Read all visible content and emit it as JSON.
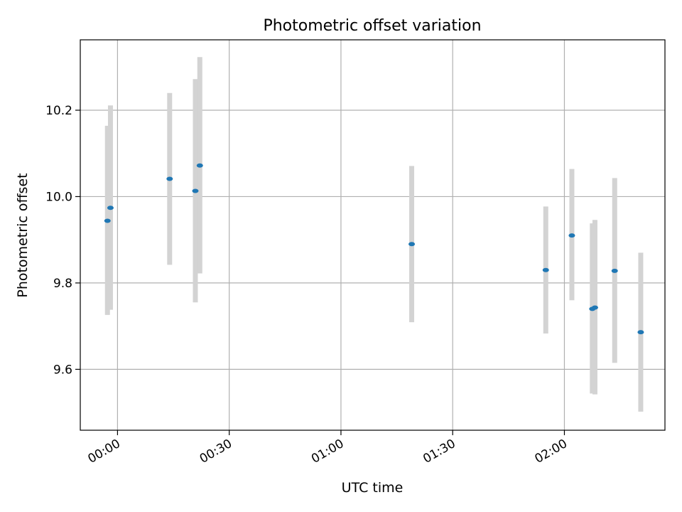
{
  "chart_data": {
    "type": "scatter",
    "title": "Photometric offset variation",
    "xlabel": "UTC time",
    "ylabel": "Photometric offset",
    "x_axis": {
      "unit": "minutes after 00:00 UTC",
      "range": [
        -10,
        147
      ],
      "ticks": [
        {
          "value": 0,
          "label": "00:00"
        },
        {
          "value": 30,
          "label": "00:30"
        },
        {
          "value": 60,
          "label": "01:00"
        },
        {
          "value": 90,
          "label": "01:30"
        },
        {
          "value": 120,
          "label": "02:00"
        }
      ]
    },
    "y_axis": {
      "range": [
        9.459,
        10.363
      ],
      "ticks": [
        {
          "value": 9.6,
          "label": "9.6"
        },
        {
          "value": 9.8,
          "label": "9.8"
        },
        {
          "value": 10.0,
          "label": "10.0"
        },
        {
          "value": 10.2,
          "label": "10.2"
        }
      ]
    },
    "grid": true,
    "legend": "none",
    "colors": {
      "marker": "#1f77b4",
      "errorbar": "#d3d3d3",
      "grid": "#b0b0b0"
    },
    "points": [
      {
        "x": -2.7,
        "y": 9.944,
        "ylo": 9.726,
        "yhi": 10.164
      },
      {
        "x": -1.9,
        "y": 9.974,
        "ylo": 9.738,
        "yhi": 10.211
      },
      {
        "x": 14.0,
        "y": 10.041,
        "ylo": 9.842,
        "yhi": 10.24
      },
      {
        "x": 20.9,
        "y": 10.013,
        "ylo": 9.755,
        "yhi": 10.272
      },
      {
        "x": 22.1,
        "y": 10.072,
        "ylo": 9.822,
        "yhi": 10.323
      },
      {
        "x": 79.0,
        "y": 9.89,
        "ylo": 9.709,
        "yhi": 10.071
      },
      {
        "x": 115.0,
        "y": 9.83,
        "ylo": 9.683,
        "yhi": 9.977
      },
      {
        "x": 122.0,
        "y": 9.91,
        "ylo": 9.76,
        "yhi": 10.064
      },
      {
        "x": 127.5,
        "y": 9.74,
        "ylo": 9.544,
        "yhi": 9.938
      },
      {
        "x": 128.2,
        "y": 9.743,
        "ylo": 9.542,
        "yhi": 9.946
      },
      {
        "x": 133.5,
        "y": 9.828,
        "ylo": 9.615,
        "yhi": 10.043
      },
      {
        "x": 140.5,
        "y": 9.686,
        "ylo": 9.502,
        "yhi": 9.87
      }
    ]
  }
}
